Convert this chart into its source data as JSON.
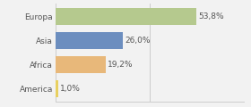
{
  "categories": [
    "Europa",
    "Asia",
    "Africa",
    "America"
  ],
  "values": [
    53.8,
    26.0,
    19.2,
    1.0
  ],
  "labels": [
    "53,8%",
    "26,0%",
    "19,2%",
    "1,0%"
  ],
  "bar_colors": [
    "#b5c98e",
    "#6c8ebf",
    "#e8b87a",
    "#e8d060"
  ],
  "background_color": "#f2f2f2",
  "xlim": [
    0,
    72
  ],
  "bar_height": 0.72,
  "label_fontsize": 6.5,
  "tick_fontsize": 6.5,
  "grid_color": "#cccccc",
  "text_color": "#555555"
}
